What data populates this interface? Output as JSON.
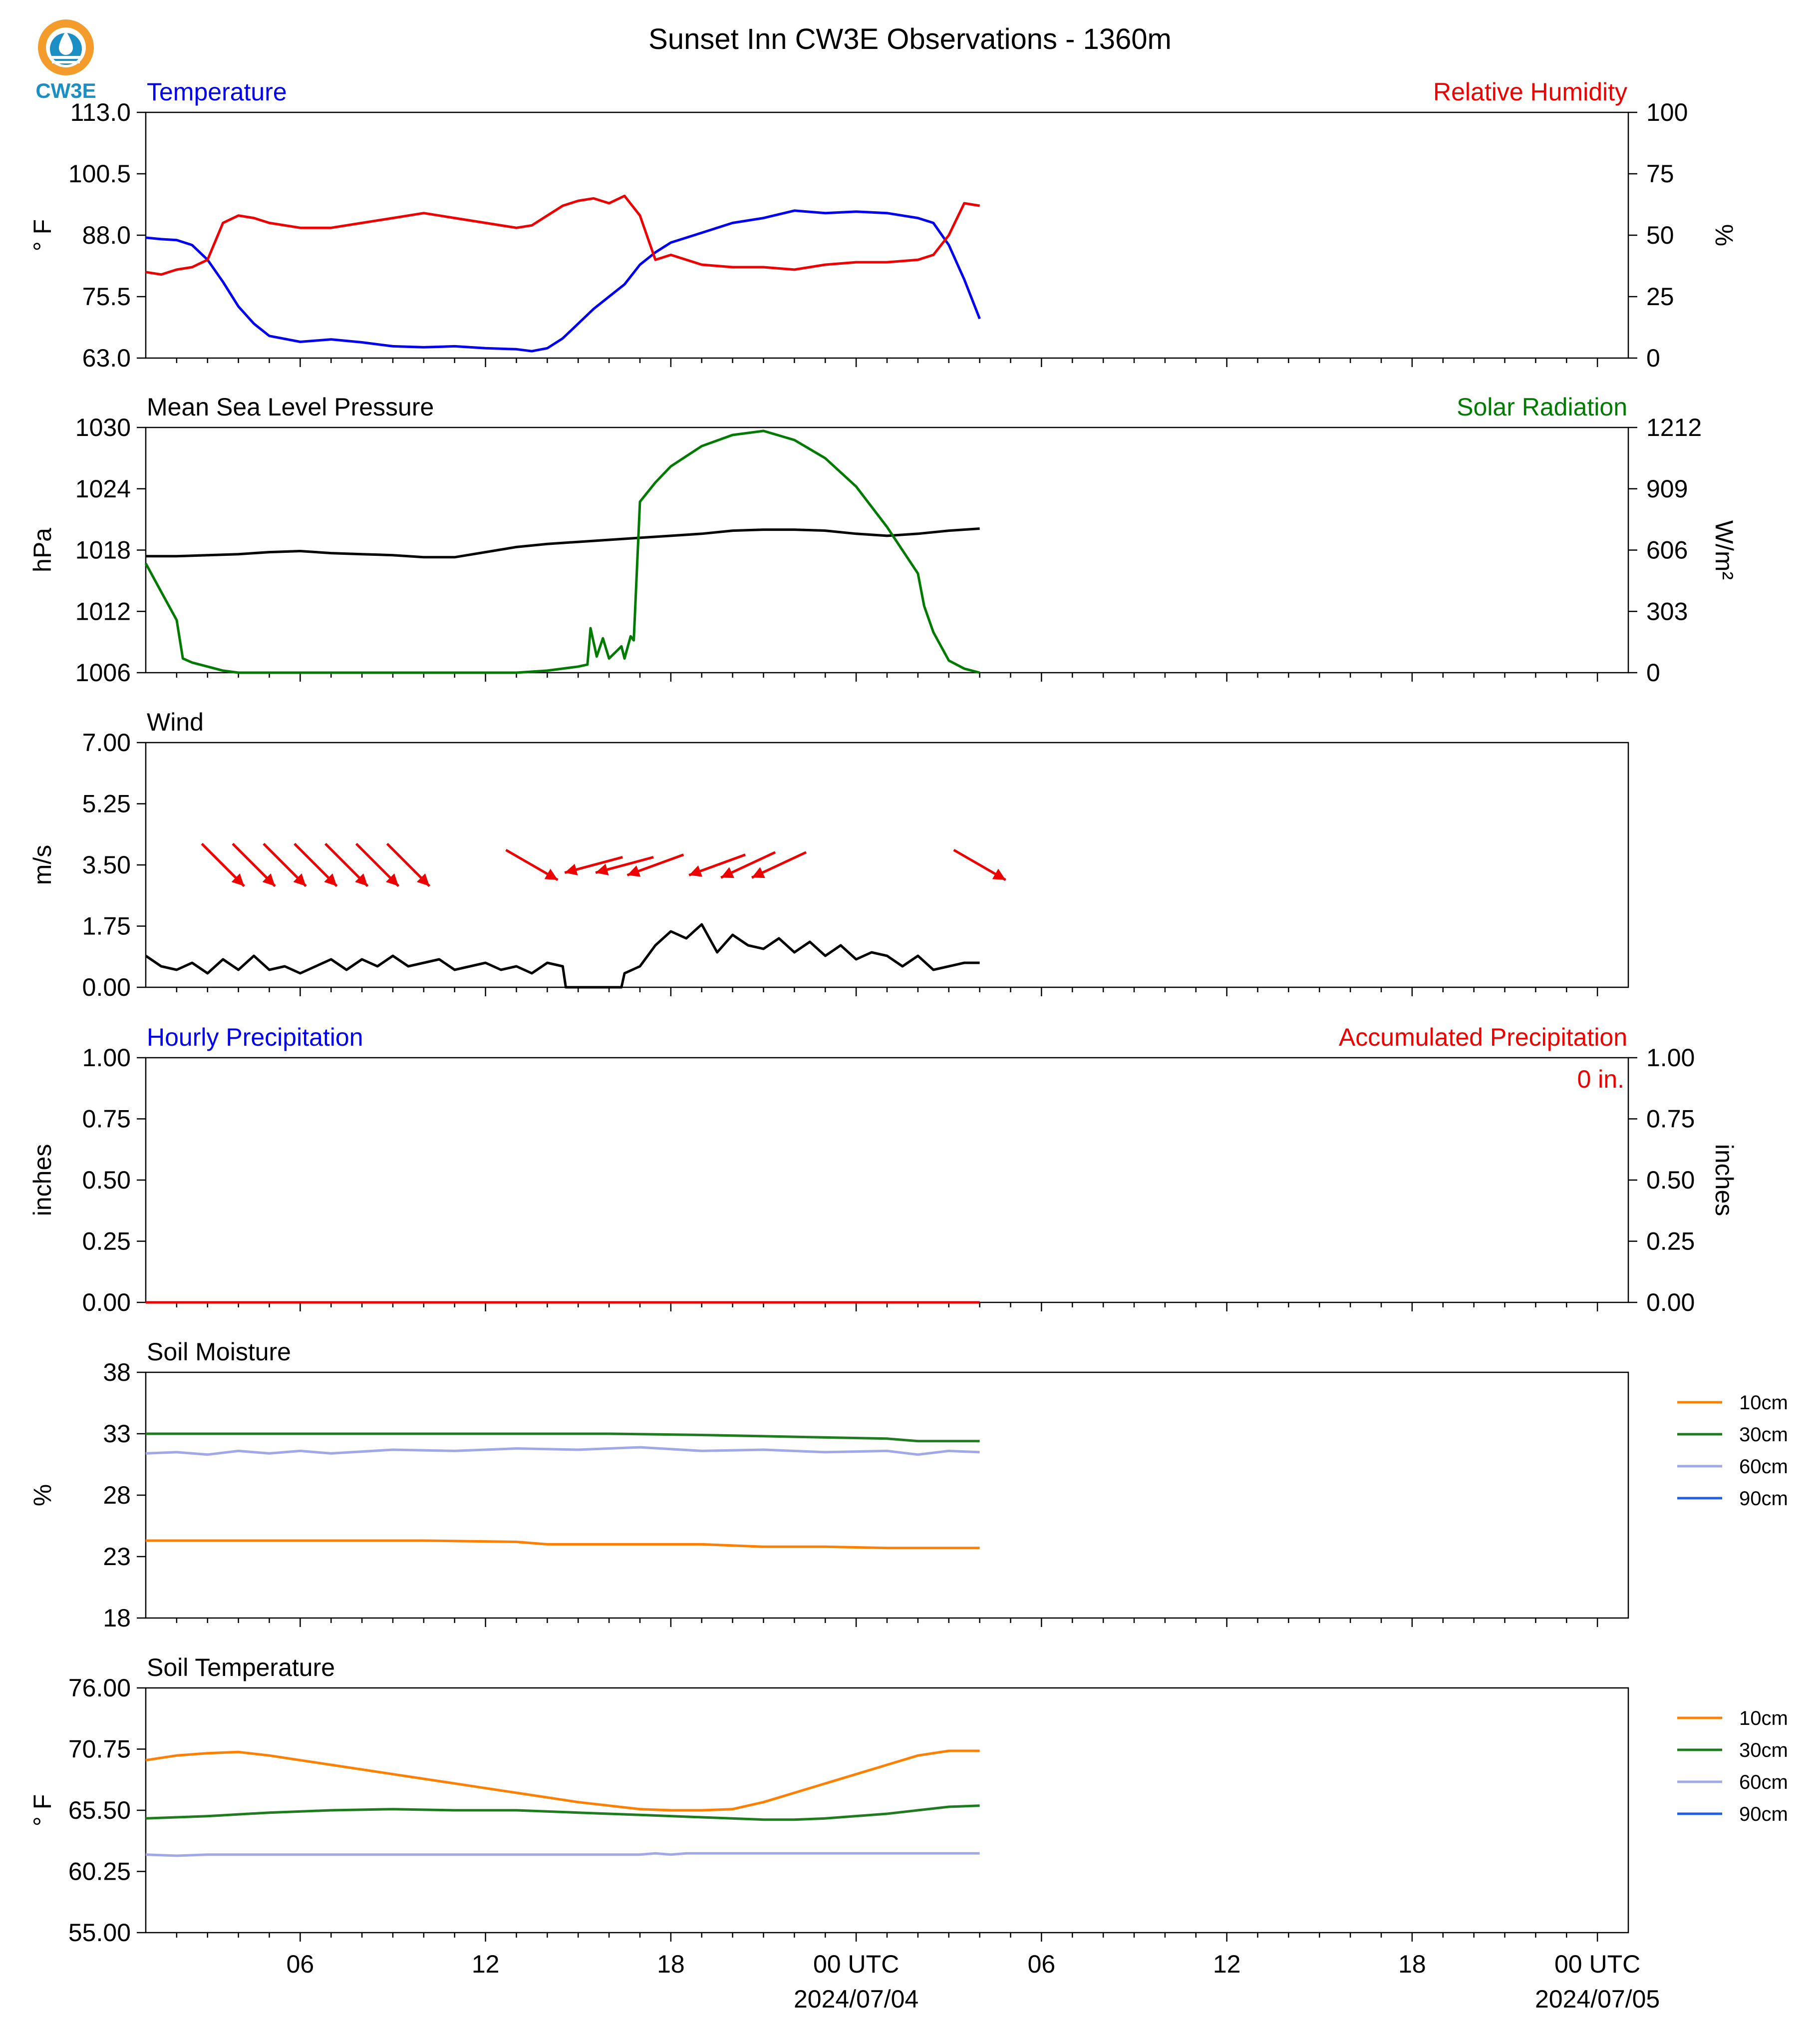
{
  "figure": {
    "title": "Sunset Inn CW3E Observations - 1360m",
    "logo_text": "CW3E"
  },
  "colors": {
    "temperature": "#0000ee",
    "humidity": "#ee0000",
    "pressure": "#000000",
    "solar": "#007a00",
    "wind": "#000000",
    "wind_arrows": "#ee0000",
    "accum_text": "#ee0000",
    "soil_10cm": "#ff8000",
    "soil_30cm": "#1e7b1e",
    "soil_60cm": "#a0a8e8",
    "soil_90cm": "#1f5fe0"
  },
  "time_axis": {
    "start_hour": 0,
    "end_hour": 48,
    "tick_labels": [
      {
        "hour": 5,
        "label": "06"
      },
      {
        "hour": 11,
        "label": "12"
      },
      {
        "hour": 17,
        "label": "18"
      },
      {
        "hour": 23,
        "label": "00 UTC",
        "sublabel": "2024/07/04"
      },
      {
        "hour": 29,
        "label": "06"
      },
      {
        "hour": 35,
        "label": "12"
      },
      {
        "hour": 41,
        "label": "18"
      },
      {
        "hour": 47,
        "label": "00 UTC",
        "sublabel": "2024/07/05"
      }
    ]
  },
  "chart_data": [
    {
      "id": "temp_rh",
      "type": "line",
      "title_left": "Temperature",
      "title_right": "Relative Humidity",
      "ylabel": "° F",
      "ylabel_right": "%",
      "ylim": [
        63.0,
        113.0
      ],
      "ylim_right": [
        0,
        100
      ],
      "yticks": [
        "63.0",
        "75.5",
        "88.0",
        "100.5",
        "113.0"
      ],
      "yticks_right": [
        "0",
        "25",
        "50",
        "75",
        "100"
      ],
      "series": [
        {
          "name": "Temperature",
          "axis": "left",
          "color_key": "temperature",
          "x": [
            0,
            0.5,
            1,
            1.5,
            2,
            2.5,
            3,
            3.5,
            4,
            5,
            6,
            7,
            8,
            9,
            10,
            11,
            12,
            12.5,
            13,
            13.5,
            14,
            14.5,
            15,
            15.5,
            16,
            16.5,
            17,
            18,
            19,
            20,
            21,
            22,
            23,
            24,
            25,
            25.5,
            26,
            26.5,
            27
          ],
          "y": [
            87.5,
            87.2,
            87.0,
            86.0,
            83.0,
            78.5,
            73.5,
            70.0,
            67.5,
            66.3,
            66.8,
            66.2,
            65.4,
            65.2,
            65.4,
            65.0,
            64.8,
            64.4,
            65.0,
            67.0,
            70.0,
            73.0,
            75.5,
            78.0,
            82.0,
            84.5,
            86.5,
            88.5,
            90.5,
            91.5,
            93.0,
            92.5,
            92.8,
            92.5,
            91.5,
            90.5,
            86.0,
            79.0,
            71.0
          ]
        },
        {
          "name": "Relative Humidity",
          "axis": "right",
          "color_key": "humidity",
          "x": [
            0,
            0.5,
            1,
            1.5,
            2,
            2.5,
            3,
            3.5,
            4,
            5,
            6,
            7,
            8,
            9,
            10,
            11,
            12,
            12.5,
            13,
            13.5,
            14,
            14.5,
            15,
            15.5,
            16,
            16.5,
            17,
            18,
            19,
            20,
            21,
            22,
            23,
            24,
            25,
            25.5,
            26,
            26.5,
            27
          ],
          "y": [
            35,
            34,
            36,
            37,
            40,
            55,
            58,
            57,
            55,
            53,
            53,
            55,
            57,
            59,
            57,
            55,
            53,
            54,
            58,
            62,
            64,
            65,
            63,
            66,
            58,
            40,
            42,
            38,
            37,
            37,
            36,
            38,
            39,
            39,
            40,
            42,
            50,
            63,
            62
          ]
        }
      ]
    },
    {
      "id": "pressure_solar",
      "type": "line",
      "title_left": "Mean Sea Level Pressure",
      "title_right": "Solar Radiation",
      "ylabel": "hPa",
      "ylabel_right": "W/m²",
      "ylim": [
        1006,
        1030
      ],
      "ylim_right": [
        0,
        1212
      ],
      "yticks": [
        "1006",
        "1012",
        "1018",
        "1024",
        "1030"
      ],
      "yticks_right": [
        "0",
        "303",
        "606",
        "909",
        "1212"
      ],
      "series": [
        {
          "name": "Mean Sea Level Pressure",
          "axis": "left",
          "color_key": "pressure",
          "x": [
            0,
            1,
            2,
            3,
            4,
            5,
            6,
            7,
            8,
            9,
            10,
            11,
            12,
            13,
            14,
            15,
            16,
            17,
            18,
            19,
            20,
            21,
            22,
            23,
            24,
            25,
            26,
            27
          ],
          "y": [
            1017.4,
            1017.4,
            1017.5,
            1017.6,
            1017.8,
            1017.9,
            1017.7,
            1017.6,
            1017.5,
            1017.3,
            1017.3,
            1017.8,
            1018.3,
            1018.6,
            1018.8,
            1019.0,
            1019.2,
            1019.4,
            1019.6,
            1019.9,
            1020.0,
            1020.0,
            1019.9,
            1019.6,
            1019.4,
            1019.6,
            1019.9,
            1020.1
          ]
        },
        {
          "name": "Solar Radiation",
          "axis": "right",
          "color_key": "solar",
          "x": [
            0,
            0.5,
            1,
            1.2,
            1.5,
            2,
            2.5,
            3,
            4,
            5,
            6,
            7,
            8,
            9,
            10,
            11,
            12,
            13,
            14,
            14.3,
            14.4,
            14.6,
            14.8,
            15,
            15.2,
            15.4,
            15.5,
            15.7,
            15.8,
            16,
            16.5,
            17,
            18,
            19,
            20,
            21,
            22,
            23,
            24,
            25,
            25.2,
            25.5,
            26,
            26.5,
            27
          ],
          "y": [
            540,
            400,
            260,
            70,
            50,
            30,
            10,
            0,
            0,
            0,
            0,
            0,
            0,
            0,
            0,
            0,
            0,
            10,
            30,
            40,
            220,
            80,
            170,
            70,
            100,
            130,
            70,
            180,
            160,
            845,
            940,
            1020,
            1120,
            1175,
            1195,
            1150,
            1060,
            920,
            720,
            490,
            330,
            200,
            60,
            20,
            0
          ]
        }
      ]
    },
    {
      "id": "wind",
      "type": "line",
      "title_left": "Wind",
      "ylabel": "m/s",
      "ylim": [
        0.0,
        7.0
      ],
      "yticks": [
        "0.00",
        "1.75",
        "3.50",
        "5.25",
        "7.00"
      ],
      "series": [
        {
          "name": "Wind",
          "axis": "left",
          "color_key": "wind",
          "x": [
            0,
            0.5,
            1,
            1.5,
            2,
            2.5,
            3,
            3.5,
            4,
            4.5,
            5,
            5.5,
            6,
            6.5,
            7,
            7.5,
            8,
            8.5,
            9,
            9.5,
            10,
            10.5,
            11,
            11.5,
            12,
            12.5,
            13,
            13.5,
            13.6,
            15.4,
            15.5,
            16,
            16.5,
            17,
            17.5,
            18,
            18.5,
            19,
            19.5,
            20,
            20.5,
            21,
            21.5,
            22,
            22.5,
            23,
            23.5,
            24,
            24.5,
            25,
            25.5,
            26,
            26.5,
            27
          ],
          "y": [
            0.9,
            0.6,
            0.5,
            0.7,
            0.4,
            0.8,
            0.5,
            0.9,
            0.5,
            0.6,
            0.4,
            0.6,
            0.8,
            0.5,
            0.8,
            0.6,
            0.9,
            0.6,
            0.7,
            0.8,
            0.5,
            0.6,
            0.7,
            0.5,
            0.6,
            0.4,
            0.7,
            0.6,
            0.0,
            0.0,
            0.4,
            0.6,
            1.2,
            1.6,
            1.4,
            1.8,
            1.0,
            1.5,
            1.2,
            1.1,
            1.4,
            1.0,
            1.3,
            0.9,
            1.2,
            0.8,
            1.0,
            0.9,
            0.6,
            0.9,
            0.5,
            0.6,
            0.7,
            0.7
          ]
        },
        {
          "name": "Wind direction",
          "type": "quiver",
          "color_key": "wind_arrows",
          "x": [
            2.5,
            3.5,
            4.5,
            5.5,
            6.5,
            7.5,
            8.5,
            12.5,
            14.5,
            15.5,
            16.5,
            18.5,
            19.5,
            20.5,
            27
          ],
          "direction_deg": [
            315,
            315,
            315,
            315,
            315,
            315,
            315,
            300,
            75,
            75,
            70,
            70,
            65,
            65,
            300
          ]
        }
      ]
    },
    {
      "id": "precip",
      "type": "line",
      "title_left": "Hourly Precipitation",
      "title_right": "Accumulated Precipitation",
      "annotation": "0 in.",
      "ylabel": "inches",
      "ylabel_right": "inches",
      "ylim": [
        0.0,
        1.0
      ],
      "ylim_right": [
        0.0,
        1.0
      ],
      "yticks": [
        "0.00",
        "0.25",
        "0.50",
        "0.75",
        "1.00"
      ],
      "yticks_right": [
        "0.00",
        "0.25",
        "0.50",
        "0.75",
        "1.00"
      ],
      "series": [
        {
          "name": "Hourly Precipitation",
          "axis": "left",
          "color_key": "temperature",
          "x": [
            0,
            27
          ],
          "y": [
            0,
            0
          ]
        },
        {
          "name": "Accumulated Precipitation",
          "axis": "right",
          "color_key": "humidity",
          "x": [
            0,
            27
          ],
          "y": [
            0,
            0
          ]
        }
      ]
    },
    {
      "id": "soil_moisture",
      "type": "line",
      "title_left": "Soil Moisture",
      "ylabel": "%",
      "ylim": [
        18,
        38
      ],
      "yticks": [
        "18",
        "23",
        "28",
        "33",
        "38"
      ],
      "legend": {
        "placement": "right",
        "entries": [
          "10cm",
          "30cm",
          "60cm",
          "90cm"
        ]
      },
      "series": [
        {
          "name": "10cm",
          "axis": "left",
          "color_key": "soil_10cm",
          "x": [
            0,
            3,
            6,
            9,
            12,
            13,
            16,
            18,
            20,
            22,
            24,
            27
          ],
          "y": [
            24.3,
            24.3,
            24.3,
            24.3,
            24.2,
            24.0,
            24.0,
            24.0,
            23.8,
            23.8,
            23.7,
            23.7
          ]
        },
        {
          "name": "30cm",
          "axis": "left",
          "color_key": "soil_30cm",
          "x": [
            0,
            3,
            6,
            9,
            12,
            15,
            18,
            20,
            22,
            24,
            25,
            27
          ],
          "y": [
            33.0,
            33.0,
            33.0,
            33.0,
            33.0,
            33.0,
            32.9,
            32.8,
            32.7,
            32.6,
            32.4,
            32.4
          ]
        },
        {
          "name": "60cm",
          "axis": "left",
          "color_key": "soil_60cm",
          "x": [
            0,
            1,
            2,
            3,
            4,
            5,
            6,
            8,
            10,
            12,
            14,
            16,
            18,
            20,
            22,
            24,
            25,
            26,
            27
          ],
          "y": [
            31.4,
            31.5,
            31.3,
            31.6,
            31.4,
            31.6,
            31.4,
            31.7,
            31.6,
            31.8,
            31.7,
            31.9,
            31.6,
            31.7,
            31.5,
            31.6,
            31.3,
            31.6,
            31.5
          ]
        }
      ]
    },
    {
      "id": "soil_temp",
      "type": "line",
      "title_left": "Soil Temperature",
      "ylabel": "° F",
      "ylim": [
        55.0,
        76.0
      ],
      "yticks": [
        "55.00",
        "60.25",
        "65.50",
        "70.75",
        "76.00"
      ],
      "legend": {
        "placement": "right",
        "entries": [
          "10cm",
          "30cm",
          "60cm",
          "90cm"
        ]
      },
      "series": [
        {
          "name": "10cm",
          "axis": "left",
          "color_key": "soil_10cm",
          "x": [
            0,
            1,
            2,
            3,
            4,
            5,
            6,
            7,
            8,
            9,
            10,
            11,
            12,
            13,
            14,
            15,
            16,
            17,
            18,
            19,
            20,
            21,
            22,
            23,
            24,
            25,
            26,
            27
          ],
          "y": [
            69.8,
            70.2,
            70.4,
            70.5,
            70.2,
            69.8,
            69.4,
            69.0,
            68.6,
            68.2,
            67.8,
            67.4,
            67.0,
            66.6,
            66.2,
            65.9,
            65.6,
            65.5,
            65.5,
            65.6,
            66.2,
            67.0,
            67.8,
            68.6,
            69.4,
            70.2,
            70.6,
            70.6
          ]
        },
        {
          "name": "30cm",
          "axis": "left",
          "color_key": "soil_30cm",
          "x": [
            0,
            2,
            4,
            6,
            8,
            10,
            12,
            14,
            16,
            18,
            20,
            21,
            22,
            24,
            26,
            27
          ],
          "y": [
            64.8,
            65.0,
            65.3,
            65.5,
            65.6,
            65.5,
            65.5,
            65.3,
            65.1,
            64.9,
            64.7,
            64.7,
            64.8,
            65.2,
            65.8,
            65.9
          ]
        },
        {
          "name": "60cm",
          "axis": "left",
          "color_key": "soil_60cm",
          "x": [
            0,
            1,
            2,
            4,
            8,
            12,
            16,
            16.5,
            17,
            17.5,
            18,
            22,
            27
          ],
          "y": [
            61.7,
            61.6,
            61.7,
            61.7,
            61.7,
            61.7,
            61.7,
            61.8,
            61.7,
            61.8,
            61.8,
            61.8,
            61.8
          ]
        }
      ]
    }
  ]
}
